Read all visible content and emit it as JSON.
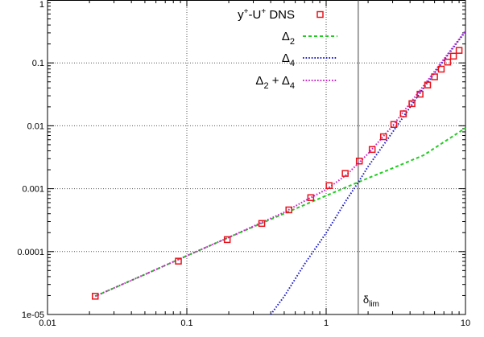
{
  "chart_data": {
    "type": "line",
    "title": "",
    "xlabel": "",
    "ylabel": "",
    "x_scale": "log",
    "y_scale": "log",
    "xlim": [
      0.01,
      10
    ],
    "ylim": [
      1e-05,
      1
    ],
    "grid": true,
    "legend_position": "top-right",
    "x_ticks": [
      {
        "value": 0.01,
        "label": "0.01"
      },
      {
        "value": 0.1,
        "label": "0.1"
      },
      {
        "value": 1,
        "label": "1"
      },
      {
        "value": 10,
        "label": "10"
      }
    ],
    "y_ticks": [
      {
        "value": 1e-05,
        "label": "1e-05"
      },
      {
        "value": 0.0001,
        "label": "0.0001"
      },
      {
        "value": 0.001,
        "label": "0.001"
      },
      {
        "value": 0.01,
        "label": "0.01"
      },
      {
        "value": 0.1,
        "label": "0.1"
      },
      {
        "value": 1,
        "label": "1"
      }
    ],
    "reference_lines": [
      {
        "orientation": "vertical",
        "x": 1.7,
        "label": "δ_lim",
        "label_main": "δ",
        "label_sub": "lim"
      }
    ],
    "series": [
      {
        "name": "y+-U+ DNS",
        "name_parts": [
          "y",
          "+",
          "-U",
          "+",
          " DNS"
        ],
        "style": "points",
        "marker": "open-square",
        "color": "#e8121b",
        "x": [
          0.022,
          0.087,
          0.195,
          0.345,
          0.54,
          0.775,
          1.05,
          1.37,
          1.73,
          2.14,
          2.58,
          3.06,
          3.58,
          4.13,
          4.72,
          5.35,
          6.0,
          6.7,
          7.45,
          8.2,
          9.0
        ],
        "y": [
          1.95e-05,
          7.05e-05,
          0.000155,
          0.00028,
          0.00046,
          0.00072,
          0.00112,
          0.00175,
          0.00275,
          0.0042,
          0.0067,
          0.0105,
          0.0155,
          0.0225,
          0.0318,
          0.0445,
          0.06,
          0.0795,
          0.103,
          0.128,
          0.158
        ]
      },
      {
        "name": "Δ2",
        "name_parts": [
          "Δ",
          "2"
        ],
        "style": "dashed",
        "color": "#22cc22",
        "x": [
          0.022,
          0.05,
          0.1,
          0.2,
          0.5,
          1,
          1.7,
          3,
          5,
          10
        ],
        "y": [
          1.95e-05,
          4.33e-05,
          8.58e-05,
          0.000168,
          0.000403,
          0.000775,
          0.00127,
          0.00212,
          0.0034,
          0.0092
        ]
      },
      {
        "name": "Δ4",
        "name_parts": [
          "Δ",
          "4"
        ],
        "style": "dotted",
        "color": "#1f1fcc",
        "x": [
          0.4,
          0.5,
          0.7,
          1,
          1.4,
          1.7,
          2,
          3,
          5,
          7,
          10
        ],
        "y": [
          1e-05,
          1.94e-05,
          6.34e-05,
          0.000198,
          0.000664,
          0.00126,
          0.00225,
          0.00794,
          0.0398,
          0.11,
          0.316
        ]
      },
      {
        "name": "Δ2 + Δ4",
        "name_parts": [
          "Δ",
          "2",
          " + Δ",
          "4"
        ],
        "style": "dotted",
        "color": "#cc22cc",
        "x": [
          0.022,
          0.05,
          0.1,
          0.2,
          0.5,
          0.7,
          1,
          1.4,
          1.7,
          2,
          3,
          5,
          7,
          10
        ],
        "y": [
          1.95e-05,
          4.33e-05,
          8.58e-05,
          0.000168,
          0.000422,
          0.000638,
          0.00097,
          0.00166,
          0.00253,
          0.0036,
          0.01,
          0.0432,
          0.115,
          0.325
        ]
      }
    ]
  }
}
